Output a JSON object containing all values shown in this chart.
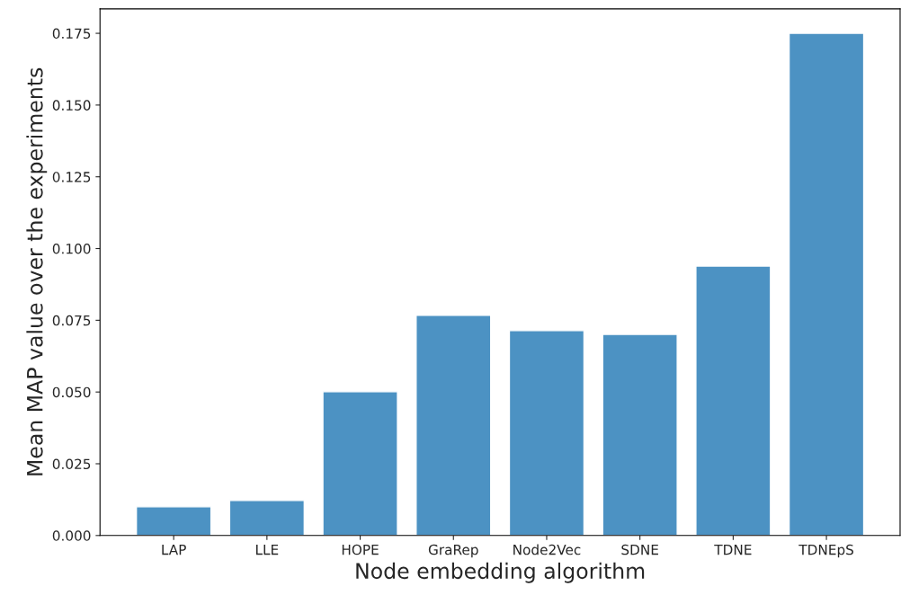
{
  "chart_data": {
    "type": "bar",
    "xlabel": "Node embedding algorithm",
    "ylabel": "Mean MAP value over the experiments",
    "categories": [
      "LAP",
      "LLE",
      "HOPE",
      "GraRep",
      "Node2Vec",
      "SDNE",
      "TDNE",
      "TDNEpS"
    ],
    "values": [
      0.01,
      0.0122,
      0.0501,
      0.0767,
      0.0714,
      0.0701,
      0.0939,
      0.175
    ],
    "color": "#4c92c3",
    "ylim": [
      0,
      0.1835
    ],
    "yticks": [
      {
        "value": 0,
        "label": "0.000"
      },
      {
        "value": 0.025,
        "label": "0.025"
      },
      {
        "value": 0.05,
        "label": "0.050"
      },
      {
        "value": 0.075,
        "label": "0.075"
      },
      {
        "value": 0.1,
        "label": "0.100"
      },
      {
        "value": 0.125,
        "label": "0.125"
      },
      {
        "value": 0.15,
        "label": "0.150"
      },
      {
        "value": 0.175,
        "label": "0.175"
      }
    ],
    "grid": false
  }
}
